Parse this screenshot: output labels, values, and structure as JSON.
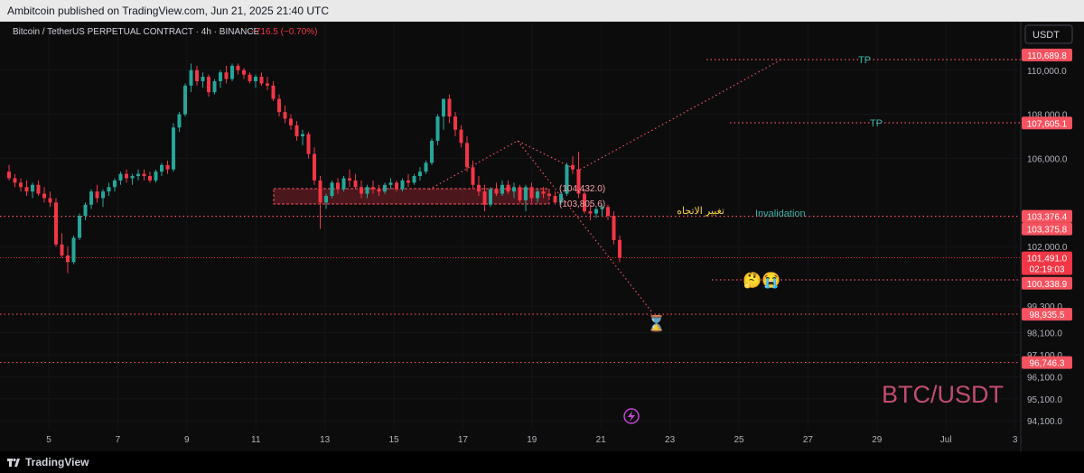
{
  "header": {
    "publish_line": "Ambitcoin published on TradingView.com, Jun 21, 2025 21:40 UTC"
  },
  "legend": {
    "symbol": "Bitcoin / TetherUS PERPETUAL CONTRACT · 4h · BINANCE",
    "change": "−716.5 (−0.70%)"
  },
  "currency_button": "USDT",
  "footer": {
    "brand": "TradingView"
  },
  "colors": {
    "up": "#26a69a",
    "down": "#f23645",
    "level": "#f7525f",
    "teal_text": "#3bb3a8",
    "watermark": "#c24d6e"
  },
  "chart_data": {
    "type": "candlestick",
    "timeframe": "4h",
    "symbol": "BTCUSDT.P",
    "x_ticks": [
      "5",
      "7",
      "9",
      "11",
      "13",
      "15",
      "17",
      "19",
      "21",
      "23",
      "25",
      "27",
      "29",
      "Jul",
      "3"
    ],
    "y_ticks": [
      "110,000.0",
      "108,000.0",
      "106,000.0",
      "102,000.0",
      "99,300.0",
      "98,100.0",
      "97,100.0",
      "96,100.0",
      "95,100.0",
      "94,100.0"
    ],
    "ylim": [
      93700,
      112200
    ],
    "price_labels": [
      {
        "text": "110,689.8",
        "value": 110689.8
      },
      {
        "text": "107,605.1",
        "value": 107605.1
      },
      {
        "text": "103,376.4",
        "value": 103376.4
      },
      {
        "text": "103,375.8",
        "value": 103375.8
      },
      {
        "text": "101,491.0",
        "sub": "02:19:03",
        "value": 101491.0
      },
      {
        "text": "100,338.9",
        "value": 100338.9
      },
      {
        "text": "98,935.5",
        "value": 98935.5
      },
      {
        "text": "96,746.3",
        "value": 96746.3
      }
    ],
    "horizontal_levels": [
      103376,
      98935.5,
      96746.3
    ],
    "targets": [
      {
        "label": "TP",
        "value": 110689.8
      },
      {
        "label": "TP",
        "value": 107605.1
      }
    ],
    "annotations": {
      "invalidation": "Invalidation",
      "arabic": "تغيير الاتجاه",
      "range_high": "(104,432.0)",
      "range_low": "(103,805.6)",
      "emoji_pair": "🤔😭",
      "hourglass": "⌛",
      "watermark": "BTC/USDT"
    },
    "candles": [
      [
        105400,
        105700,
        105000,
        105100
      ],
      [
        105100,
        105300,
        104700,
        104900
      ],
      [
        104900,
        105100,
        104500,
        104700
      ],
      [
        104700,
        105000,
        104300,
        104500
      ],
      [
        104500,
        104900,
        104200,
        104800
      ],
      [
        104800,
        105000,
        104300,
        104400
      ],
      [
        104400,
        104700,
        104000,
        104200
      ],
      [
        104200,
        104500,
        103800,
        104000
      ],
      [
        104000,
        104200,
        102000,
        102100
      ],
      [
        102100,
        102600,
        101500,
        101600
      ],
      [
        101600,
        102000,
        100800,
        101300
      ],
      [
        101300,
        102500,
        101200,
        102400
      ],
      [
        102400,
        103500,
        102300,
        103400
      ],
      [
        103400,
        104000,
        103200,
        103900
      ],
      [
        103900,
        104600,
        103700,
        104500
      ],
      [
        104500,
        104800,
        104000,
        104200
      ],
      [
        104200,
        104600,
        103800,
        104500
      ],
      [
        104500,
        104900,
        104300,
        104700
      ],
      [
        104700,
        105100,
        104500,
        105000
      ],
      [
        105000,
        105400,
        104800,
        105300
      ],
      [
        105300,
        105500,
        104900,
        105100
      ],
      [
        105100,
        105300,
        104800,
        105200
      ],
      [
        105200,
        105500,
        105000,
        105300
      ],
      [
        105300,
        105500,
        105000,
        105200
      ],
      [
        105200,
        105400,
        104900,
        105000
      ],
      [
        105000,
        105500,
        104900,
        105400
      ],
      [
        105400,
        105800,
        105200,
        105700
      ],
      [
        105700,
        105900,
        105300,
        105500
      ],
      [
        105500,
        107600,
        105400,
        107400
      ],
      [
        107400,
        108100,
        107200,
        108000
      ],
      [
        108000,
        109400,
        107900,
        109300
      ],
      [
        109300,
        110300,
        109000,
        110000
      ],
      [
        110000,
        110200,
        109300,
        109500
      ],
      [
        109500,
        109900,
        109200,
        109700
      ],
      [
        109700,
        109800,
        108800,
        109000
      ],
      [
        109000,
        109600,
        108900,
        109500
      ],
      [
        109500,
        110000,
        109200,
        109900
      ],
      [
        109900,
        110200,
        109400,
        109600
      ],
      [
        109600,
        110300,
        109500,
        110200
      ],
      [
        110200,
        110300,
        109800,
        110000
      ],
      [
        110000,
        110100,
        109600,
        109800
      ],
      [
        109800,
        109900,
        109400,
        109500
      ],
      [
        109500,
        109800,
        109200,
        109700
      ],
      [
        109700,
        109900,
        109300,
        109400
      ],
      [
        109400,
        109700,
        109100,
        109300
      ],
      [
        109300,
        109500,
        108600,
        108700
      ],
      [
        108700,
        108900,
        107900,
        108100
      ],
      [
        108100,
        108400,
        107600,
        107800
      ],
      [
        107800,
        108000,
        107300,
        107500
      ],
      [
        107500,
        107700,
        106800,
        107000
      ],
      [
        107000,
        107300,
        106600,
        107100
      ],
      [
        107100,
        107200,
        106000,
        106200
      ],
      [
        106200,
        106500,
        104800,
        105000
      ],
      [
        105000,
        105200,
        102800,
        104000
      ],
      [
        104000,
        104400,
        103700,
        104300
      ],
      [
        104300,
        105000,
        104200,
        104900
      ],
      [
        104900,
        105100,
        104400,
        104600
      ],
      [
        104600,
        105200,
        104500,
        105100
      ],
      [
        105100,
        105500,
        104700,
        105000
      ],
      [
        105000,
        105300,
        104600,
        104700
      ],
      [
        104700,
        105000,
        104200,
        104400
      ],
      [
        104400,
        104800,
        104200,
        104700
      ],
      [
        104700,
        105000,
        104400,
        104600
      ],
      [
        104600,
        104800,
        104300,
        104500
      ],
      [
        104500,
        104900,
        104400,
        104800
      ],
      [
        104800,
        105100,
        104600,
        104900
      ],
      [
        104900,
        105000,
        104500,
        104600
      ],
      [
        104600,
        105100,
        104500,
        105000
      ],
      [
        105000,
        105300,
        104700,
        104900
      ],
      [
        104900,
        105300,
        104800,
        105200
      ],
      [
        105200,
        105600,
        105000,
        105400
      ],
      [
        105400,
        105900,
        105300,
        105800
      ],
      [
        105800,
        106900,
        105700,
        106800
      ],
      [
        106800,
        108000,
        106600,
        107900
      ],
      [
        107900,
        108700,
        107300,
        108700
      ],
      [
        108700,
        108900,
        107600,
        107900
      ],
      [
        107900,
        108100,
        107000,
        107300
      ],
      [
        107300,
        107500,
        106500,
        106700
      ],
      [
        106700,
        107000,
        105400,
        105600
      ],
      [
        105600,
        105900,
        104600,
        104800
      ],
      [
        104800,
        105200,
        104300,
        104500
      ],
      [
        104500,
        104800,
        103600,
        103900
      ],
      [
        103900,
        104700,
        103800,
        104600
      ],
      [
        104600,
        104900,
        104300,
        104400
      ],
      [
        104400,
        105000,
        104300,
        104800
      ],
      [
        104800,
        105000,
        104400,
        104500
      ],
      [
        104500,
        104900,
        104200,
        104700
      ],
      [
        104700,
        104800,
        104000,
        104100
      ],
      [
        104100,
        104800,
        103600,
        104700
      ],
      [
        104700,
        104900,
        104000,
        104200
      ],
      [
        104200,
        104600,
        104000,
        104500
      ],
      [
        104500,
        104700,
        104200,
        104400
      ],
      [
        104400,
        104600,
        104100,
        104300
      ],
      [
        104300,
        104500,
        103900,
        104000
      ],
      [
        104000,
        104500,
        103900,
        104400
      ],
      [
        104400,
        105800,
        104300,
        105700
      ],
      [
        105700,
        106100,
        105300,
        105500
      ],
      [
        105500,
        106300,
        104200,
        104400
      ],
      [
        104400,
        104600,
        103500,
        103600
      ],
      [
        103600,
        103900,
        103200,
        103500
      ],
      [
        103500,
        103800,
        103300,
        103700
      ],
      [
        103700,
        103900,
        103400,
        103800
      ],
      [
        103800,
        103900,
        103200,
        103400
      ],
      [
        103400,
        103600,
        102100,
        102300
      ],
      [
        102300,
        102500,
        101300,
        101500
      ]
    ]
  }
}
